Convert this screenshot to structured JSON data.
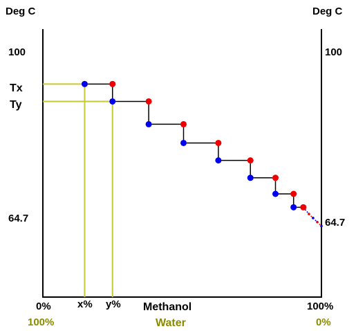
{
  "labels": {
    "left_unit": "Deg C",
    "right_unit": "Deg C",
    "left_100": "100",
    "right_100": "100",
    "tx": "Tx",
    "ty": "Ty",
    "left_boiling": "64.7",
    "right_boiling": "64.7",
    "x_pct": "x%",
    "y_pct": "y%",
    "methanol_0": "0%",
    "methanol_100": "100%",
    "methanol": "Methanol",
    "water_100": "100%",
    "water_0": "0%",
    "water": "Water"
  },
  "colors": {
    "axis": "#000000",
    "guide": "#c8c832",
    "liquid_point": "#0000ee",
    "vapour_point": "#ee0000",
    "step_line": "#000000",
    "water_text": "#8b8b00"
  },
  "chart_data": {
    "type": "diagram",
    "x_axis": {
      "quantity": "Methanol",
      "min_label": "0%",
      "max_label": "100%"
    },
    "secondary_x_axis": {
      "quantity": "Water",
      "min_label": "100%",
      "max_label": "0%"
    },
    "y_axis": {
      "unit": "Deg C",
      "ticks": [
        "100",
        "Tx",
        "Ty",
        "64.7"
      ]
    },
    "steps": [
      {
        "blue_fraction": 0.15,
        "blue_temp": 0.795,
        "red_fraction": 0.25,
        "red_temp": 0.795
      },
      {
        "blue_fraction": 0.25,
        "blue_temp": 0.73,
        "red_fraction": 0.38,
        "red_temp": 0.73
      },
      {
        "blue_fraction": 0.38,
        "blue_temp": 0.645,
        "red_fraction": 0.505,
        "red_temp": 0.645
      },
      {
        "blue_fraction": 0.505,
        "blue_temp": 0.575,
        "red_fraction": 0.63,
        "red_temp": 0.575
      },
      {
        "blue_fraction": 0.63,
        "blue_temp": 0.51,
        "red_fraction": 0.745,
        "red_temp": 0.51
      },
      {
        "blue_fraction": 0.745,
        "blue_temp": 0.445,
        "red_fraction": 0.835,
        "red_temp": 0.445
      },
      {
        "blue_fraction": 0.835,
        "blue_temp": 0.385,
        "red_fraction": 0.9,
        "red_temp": 0.385
      },
      {
        "blue_fraction": 0.9,
        "blue_temp": 0.335,
        "red_fraction": 0.935,
        "red_temp": 0.335
      }
    ],
    "tail": [
      {
        "fraction": 0.935,
        "temp": 0.335,
        "color": "blue"
      },
      {
        "fraction": 0.955,
        "temp": 0.31,
        "color": "red"
      },
      {
        "fraction": 0.97,
        "temp": 0.295,
        "color": "blue"
      },
      {
        "fraction": 0.985,
        "temp": 0.28,
        "color": "red"
      },
      {
        "fraction": 1.0,
        "temp": 0.265,
        "color": "blue"
      }
    ]
  }
}
